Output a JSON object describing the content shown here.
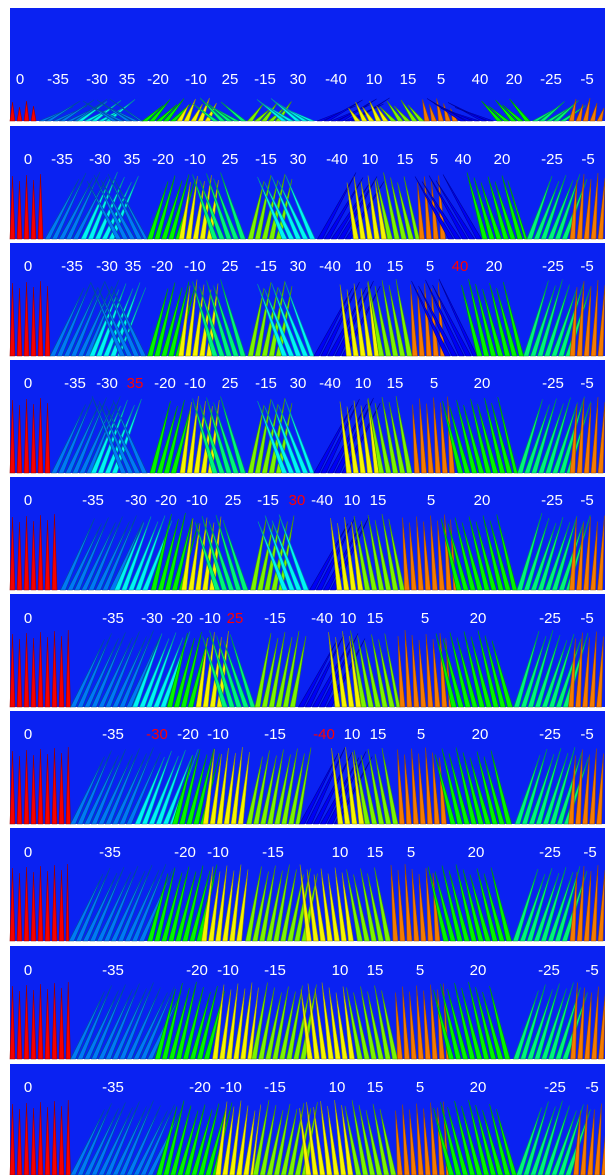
{
  "panels": [
    {
      "labels": [
        {
          "text": "0"
        },
        {
          "text": "-35"
        },
        {
          "text": "-30"
        },
        {
          "text": "35"
        },
        {
          "text": "-20"
        },
        {
          "text": "-10"
        },
        {
          "text": "25"
        },
        {
          "text": "-15"
        },
        {
          "text": "30"
        },
        {
          "text": "-40"
        },
        {
          "text": "10"
        },
        {
          "text": "15"
        },
        {
          "text": "5"
        },
        {
          "text": "40"
        },
        {
          "text": "20"
        },
        {
          "text": "-25"
        },
        {
          "text": "-5"
        }
      ]
    },
    {
      "labels": [
        {
          "text": "0"
        },
        {
          "text": "-35"
        },
        {
          "text": "-30"
        },
        {
          "text": "35"
        },
        {
          "text": "-20"
        },
        {
          "text": "-10"
        },
        {
          "text": "25"
        },
        {
          "text": "-15"
        },
        {
          "text": "30"
        },
        {
          "text": "-40"
        },
        {
          "text": "10"
        },
        {
          "text": "15"
        },
        {
          "text": "5"
        },
        {
          "text": "40"
        },
        {
          "text": "20"
        },
        {
          "text": "-25"
        },
        {
          "text": "-5"
        }
      ]
    },
    {
      "labels": [
        {
          "text": "0"
        },
        {
          "text": "-35"
        },
        {
          "text": "-30"
        },
        {
          "text": "35"
        },
        {
          "text": "-20"
        },
        {
          "text": "-10"
        },
        {
          "text": "25"
        },
        {
          "text": "-15"
        },
        {
          "text": "30"
        },
        {
          "text": "-40"
        },
        {
          "text": "10"
        },
        {
          "text": "15"
        },
        {
          "text": "5"
        },
        {
          "text": "40",
          "color": "red"
        },
        {
          "text": "20"
        },
        {
          "text": "-25"
        },
        {
          "text": "-5"
        }
      ]
    },
    {
      "labels": [
        {
          "text": "0"
        },
        {
          "text": "-35"
        },
        {
          "text": "-30"
        },
        {
          "text": "35",
          "color": "red"
        },
        {
          "text": "-20"
        },
        {
          "text": "-10"
        },
        {
          "text": "25"
        },
        {
          "text": "-15"
        },
        {
          "text": "30"
        },
        {
          "text": "-40"
        },
        {
          "text": "10"
        },
        {
          "text": "15"
        },
        {
          "text": "5"
        },
        {
          "text": "20"
        },
        {
          "text": "-25"
        },
        {
          "text": "-5"
        }
      ]
    },
    {
      "labels": [
        {
          "text": "0"
        },
        {
          "text": "-35"
        },
        {
          "text": "-30"
        },
        {
          "text": "-20"
        },
        {
          "text": "-10"
        },
        {
          "text": "25"
        },
        {
          "text": "-15"
        },
        {
          "text": "30",
          "color": "red"
        },
        {
          "text": "-40"
        },
        {
          "text": "10"
        },
        {
          "text": "15"
        },
        {
          "text": "5"
        },
        {
          "text": "20"
        },
        {
          "text": "-25"
        },
        {
          "text": "-5"
        }
      ]
    },
    {
      "labels": [
        {
          "text": "0"
        },
        {
          "text": "-35"
        },
        {
          "text": "-30"
        },
        {
          "text": "-20"
        },
        {
          "text": "-10"
        },
        {
          "text": "25",
          "color": "red"
        },
        {
          "text": "-15"
        },
        {
          "text": "-40"
        },
        {
          "text": "10"
        },
        {
          "text": "15"
        },
        {
          "text": "5"
        },
        {
          "text": "20"
        },
        {
          "text": "-25"
        },
        {
          "text": "-5"
        }
      ]
    },
    {
      "labels": [
        {
          "text": "0"
        },
        {
          "text": "-35"
        },
        {
          "text": "-30",
          "color": "red"
        },
        {
          "text": "-20"
        },
        {
          "text": "-10"
        },
        {
          "text": "-15"
        },
        {
          "text": "-40",
          "color": "red"
        },
        {
          "text": "10"
        },
        {
          "text": "15"
        },
        {
          "text": "5"
        },
        {
          "text": "20"
        },
        {
          "text": "-25"
        },
        {
          "text": "-5"
        }
      ]
    },
    {
      "labels": [
        {
          "text": "0"
        },
        {
          "text": "-35"
        },
        {
          "text": "-20"
        },
        {
          "text": "-10"
        },
        {
          "text": "-15"
        },
        {
          "text": "10"
        },
        {
          "text": "15"
        },
        {
          "text": "5"
        },
        {
          "text": "20"
        },
        {
          "text": "-25"
        },
        {
          "text": "-5"
        }
      ]
    },
    {
      "labels": [
        {
          "text": "0"
        },
        {
          "text": "-35"
        },
        {
          "text": "-20"
        },
        {
          "text": "-10"
        },
        {
          "text": "-15"
        },
        {
          "text": "10"
        },
        {
          "text": "15"
        },
        {
          "text": "5"
        },
        {
          "text": "20"
        },
        {
          "text": "-25"
        },
        {
          "text": "-5"
        }
      ]
    },
    {
      "labels": [
        {
          "text": "0"
        },
        {
          "text": "-35"
        },
        {
          "text": "-20"
        },
        {
          "text": "-10"
        },
        {
          "text": "-15"
        },
        {
          "text": "10"
        },
        {
          "text": "15"
        },
        {
          "text": "5"
        },
        {
          "text": "20"
        },
        {
          "text": "-25"
        },
        {
          "text": "-5"
        }
      ]
    }
  ]
}
